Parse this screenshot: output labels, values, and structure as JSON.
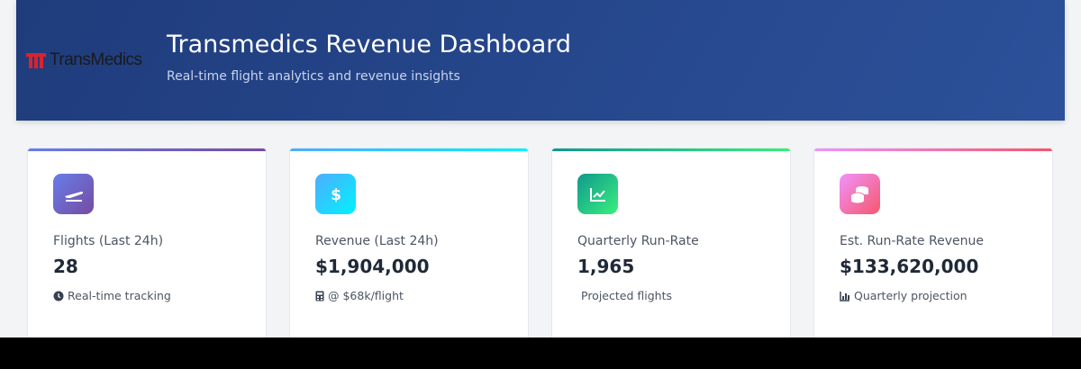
{
  "header": {
    "logo": "TransMedics",
    "title": "Transmedics Revenue Dashboard",
    "subtitle": "Real-time flight analytics and revenue insights"
  },
  "cards": [
    {
      "label": "Flights (Last 24h)",
      "value": "28",
      "note": "Real-time tracking"
    },
    {
      "label": "Revenue (Last 24h)",
      "value": "$1,904,000",
      "note": "@ $68k/flight"
    },
    {
      "label": "Quarterly Run-Rate",
      "value": "1,965",
      "note": "Projected flights"
    },
    {
      "label": "Est. Run-Rate Revenue",
      "value": "$133,620,000",
      "note": "Quarterly projection"
    }
  ]
}
